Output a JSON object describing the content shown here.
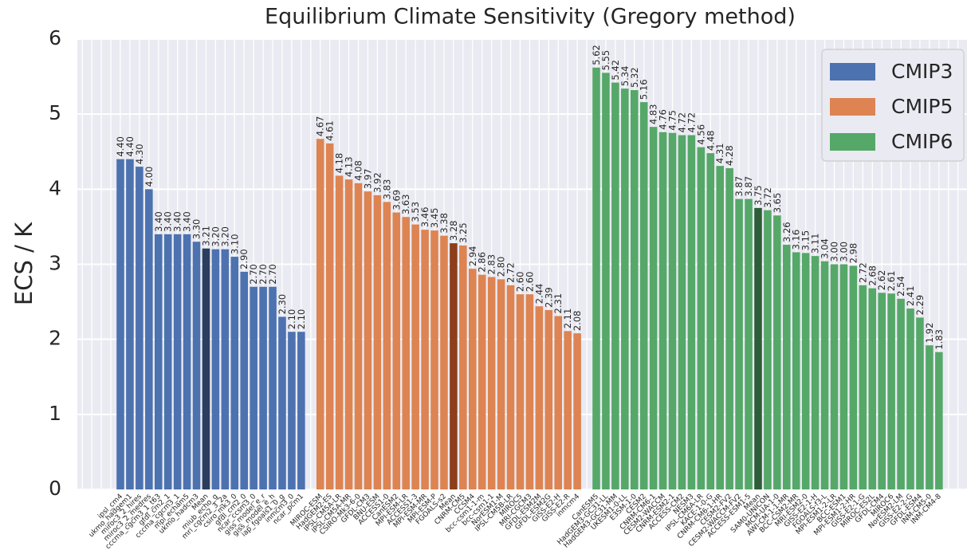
{
  "chart_data": {
    "type": "bar",
    "title": "Equilibrium Climate Sensitivity (Gregory method)",
    "y_label": "ECS / K",
    "ylim": [
      0,
      6
    ],
    "yticks": [
      0,
      1,
      2,
      3,
      4,
      5,
      6
    ],
    "grid": true,
    "legend": "upper right",
    "series": [
      {
        "name": "CMIP3",
        "color": "#4c72b0",
        "categories": [
          "ipsl_cm4",
          "ukmo_hadgem1",
          "miroc3_2_hires",
          "miroc3_2_medres",
          "cccma_cgcm3_1_t63",
          "gfdl_cm2_1",
          "cccma_cgcm3_1",
          "mpi_echam5",
          "ukmo_hadcm3",
          "Mean",
          "miub_echo_g",
          "mri_cgcm2_3_2a",
          "csiro_mk3_0",
          "gfdl_cm2_0",
          "ncar_ccsm3_0",
          "giss_model_e_r",
          "giss_model_e_h",
          "iap_fgoals1_0_g",
          "inmcm3_0",
          "ncar_pcm1"
        ],
        "values": [
          4.4,
          4.4,
          4.3,
          4.0,
          3.4,
          3.4,
          3.4,
          3.4,
          3.3,
          3.21,
          3.2,
          3.2,
          3.1,
          2.9,
          2.7,
          2.7,
          2.7,
          2.3,
          2.1,
          2.1
        ],
        "value_labels": [
          "4.40",
          "4.40",
          "4.30",
          "4.00",
          "3.40",
          "3.40",
          "3.40",
          "3.40",
          "3.30",
          "3.21",
          "3.20",
          "3.20",
          "3.10",
          "2.90",
          "2.70",
          "2.70",
          "2.70",
          "2.30",
          "2.10",
          "2.10"
        ],
        "colors": [
          "#4c72b0",
          "#4c72b0",
          "#4c72b0",
          "#4c72b0",
          "#4c72b0",
          "#4c72b0",
          "#4c72b0",
          "#4c72b0",
          "#4c72b0",
          "#2c3e5e",
          "#4c72b0",
          "#4c72b0",
          "#4c72b0",
          "#4c72b0",
          "#4c72b0",
          "#4c72b0",
          "#4c72b0",
          "#4c72b0",
          "#4c72b0",
          "#4c72b0"
        ]
      },
      {
        "name": "CMIP5",
        "color": "#dd8452",
        "categories": [
          "MIROC-ESM",
          "HadGEM2-ES",
          "IPSL-CM5A-LR",
          "IPSL-CM5A-MR",
          "CSIRO-Mk3-6-0",
          "GFDL-CM3",
          "BNU-ESM",
          "ACCESS1-0",
          "CanESM2",
          "MPI-ESM-LR",
          "ACCESS1-3",
          "MPI-ESM-MR",
          "MPI-ESM-P",
          "FGOALS-s2",
          "Mean",
          "CNRM-CM5",
          "CCSM4",
          "bcc-csm1-1-m",
          "bcc-csm1-1",
          "NorESM1-M",
          "IPSL-CM5B-LR",
          "MIROC5",
          "MRI-CGCM3",
          "GFDL-ESM2M",
          "GFDL-ESM2G",
          "GISS-E2-H",
          "GISS-E2-R",
          "inmcm4"
        ],
        "values": [
          4.67,
          4.61,
          4.18,
          4.13,
          4.08,
          3.97,
          3.92,
          3.83,
          3.69,
          3.63,
          3.53,
          3.46,
          3.45,
          3.38,
          3.28,
          3.25,
          2.94,
          2.86,
          2.83,
          2.8,
          2.72,
          2.6,
          2.6,
          2.44,
          2.39,
          2.31,
          2.11,
          2.08
        ],
        "value_labels": [
          "4.67",
          "4.61",
          "4.18",
          "4.13",
          "4.08",
          "3.97",
          "3.92",
          "3.83",
          "3.69",
          "3.63",
          "3.53",
          "3.46",
          "3.45",
          "3.38",
          "3.28",
          "3.25",
          "2.94",
          "2.86",
          "2.83",
          "2.80",
          "2.72",
          "2.60",
          "2.60",
          "2.44",
          "2.39",
          "2.31",
          "2.11",
          "2.08"
        ],
        "colors": [
          "#dd8452",
          "#dd8452",
          "#dd8452",
          "#dd8452",
          "#dd8452",
          "#dd8452",
          "#dd8452",
          "#dd8452",
          "#dd8452",
          "#dd8452",
          "#dd8452",
          "#dd8452",
          "#dd8452",
          "#dd8452",
          "#8c3f1a",
          "#dd8452",
          "#dd8452",
          "#dd8452",
          "#dd8452",
          "#dd8452",
          "#dd8452",
          "#dd8452",
          "#dd8452",
          "#dd8452",
          "#dd8452",
          "#dd8452",
          "#dd8452",
          "#dd8452"
        ]
      },
      {
        "name": "CMIP6",
        "color": "#55a868",
        "categories": [
          "CanESM5",
          "HadGEM3-GC31-LL",
          "HadGEM3-GC31-MM",
          "UKESM1-0-LL",
          "E3SM-1-0",
          "CESM2",
          "CNRM-CM6-1",
          "CESM2-WACCM",
          "CNRM-ESM2-1",
          "ACCESS-CM2",
          "NESM3",
          "IPSL-CM6A-LR",
          "KACE-1-0-G",
          "CNRM-CM6-1-HR",
          "CESM2-FV2",
          "CESM2-WACCM-FV2",
          "ACCESS-ESM1-5",
          "Mean",
          "SAM0-UNICON",
          "MCM-UA-1-0",
          "AWI-CM-1-1-MR",
          "BCC-CSM2-MR",
          "MRI-ESM2-0",
          "GISS-E2-1-H",
          "FGOALS-f3-L",
          "MPI-ESM1-2-LR",
          "BCC-ESM1",
          "MPI-ESM1-2-HR",
          "GISS-E2-1-G",
          "MIROC-ES2L",
          "GFDL-CM4",
          "MIROC6",
          "NorESM2-LM",
          "GISS-E2-2-G",
          "GFDL-ESM4",
          "INM-CM5-0",
          "INM-CM4-8"
        ],
        "values": [
          5.62,
          5.55,
          5.42,
          5.34,
          5.32,
          5.16,
          4.83,
          4.76,
          4.75,
          4.72,
          4.72,
          4.56,
          4.48,
          4.31,
          4.28,
          3.87,
          3.87,
          3.75,
          3.72,
          3.65,
          3.26,
          3.16,
          3.15,
          3.11,
          3.04,
          3.0,
          3.0,
          2.98,
          2.72,
          2.68,
          2.62,
          2.61,
          2.54,
          2.41,
          2.29,
          1.92,
          1.83
        ],
        "value_labels": [
          "5.62",
          "5.55",
          "5.42",
          "5.34",
          "5.32",
          "5.16",
          "4.83",
          "4.76",
          "4.75",
          "4.72",
          "4.72",
          "4.56",
          "4.48",
          "4.31",
          "4.28",
          "3.87",
          "3.87",
          "3.75",
          "3.72",
          "3.65",
          "3.26",
          "3.16",
          "3.15",
          "3.11",
          "3.04",
          "3.00",
          "3.00",
          "2.98",
          "2.72",
          "2.68",
          "2.62",
          "2.61",
          "2.54",
          "2.41",
          "2.29",
          "1.92",
          "1.83"
        ],
        "colors": [
          "#55a868",
          "#55a868",
          "#55a868",
          "#55a868",
          "#55a868",
          "#55a868",
          "#55a868",
          "#55a868",
          "#55a868",
          "#55a868",
          "#55a868",
          "#55a868",
          "#55a868",
          "#55a868",
          "#55a868",
          "#55a868",
          "#55a868",
          "#2d5e38",
          "#55a868",
          "#55a868",
          "#55a868",
          "#55a868",
          "#55a868",
          "#55a868",
          "#55a868",
          "#55a868",
          "#55a868",
          "#55a868",
          "#55a868",
          "#55a868",
          "#55a868",
          "#55a868",
          "#55a868",
          "#55a868",
          "#55a868",
          "#55a868",
          "#55a868"
        ]
      }
    ]
  }
}
